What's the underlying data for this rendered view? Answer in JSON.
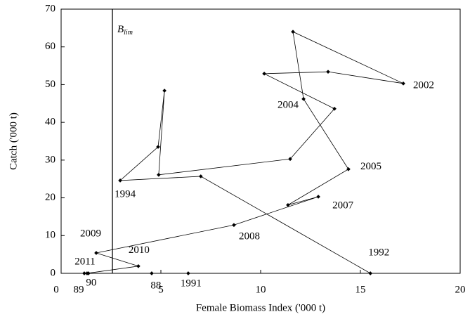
{
  "chart_data": {
    "type": "line",
    "xlabel": "Female Biomass Index ('000 t)",
    "ylabel": "Catch ('000 t)",
    "xlim": [
      0,
      20
    ],
    "xticks": [
      0,
      5,
      10,
      15,
      20
    ],
    "ylim": [
      0,
      70
    ],
    "yticks": [
      0,
      10,
      20,
      30,
      40,
      50,
      60,
      70
    ],
    "color": "#000000",
    "x": [
      4.54,
      1.16,
      1.37,
      6.37,
      15.5,
      7.0,
      2.96,
      4.86,
      5.18,
      4.89,
      11.48,
      13.7,
      10.18,
      13.38,
      17.15,
      11.62,
      12.15,
      14.4,
      11.37,
      12.89,
      8.66,
      1.76,
      3.87,
      1.3
    ],
    "values": [
      0,
      0,
      0,
      0,
      0,
      25.7,
      24.6,
      33.5,
      48.4,
      26.1,
      30.3,
      43.6,
      52.9,
      53.4,
      50.3,
      64.0,
      46.2,
      27.6,
      18.1,
      20.3,
      12.8,
      5.4,
      1.9,
      0
    ],
    "point_labels": [
      "88",
      "89",
      "90",
      "1991",
      "1992",
      null,
      "1994",
      null,
      null,
      null,
      null,
      null,
      null,
      null,
      "2002",
      null,
      "2004",
      "2005",
      null,
      "2007",
      "2008",
      "2009",
      "2010",
      "2011"
    ],
    "reference_line": {
      "x": 2.57,
      "label": "B",
      "label_sub": "lim"
    }
  }
}
